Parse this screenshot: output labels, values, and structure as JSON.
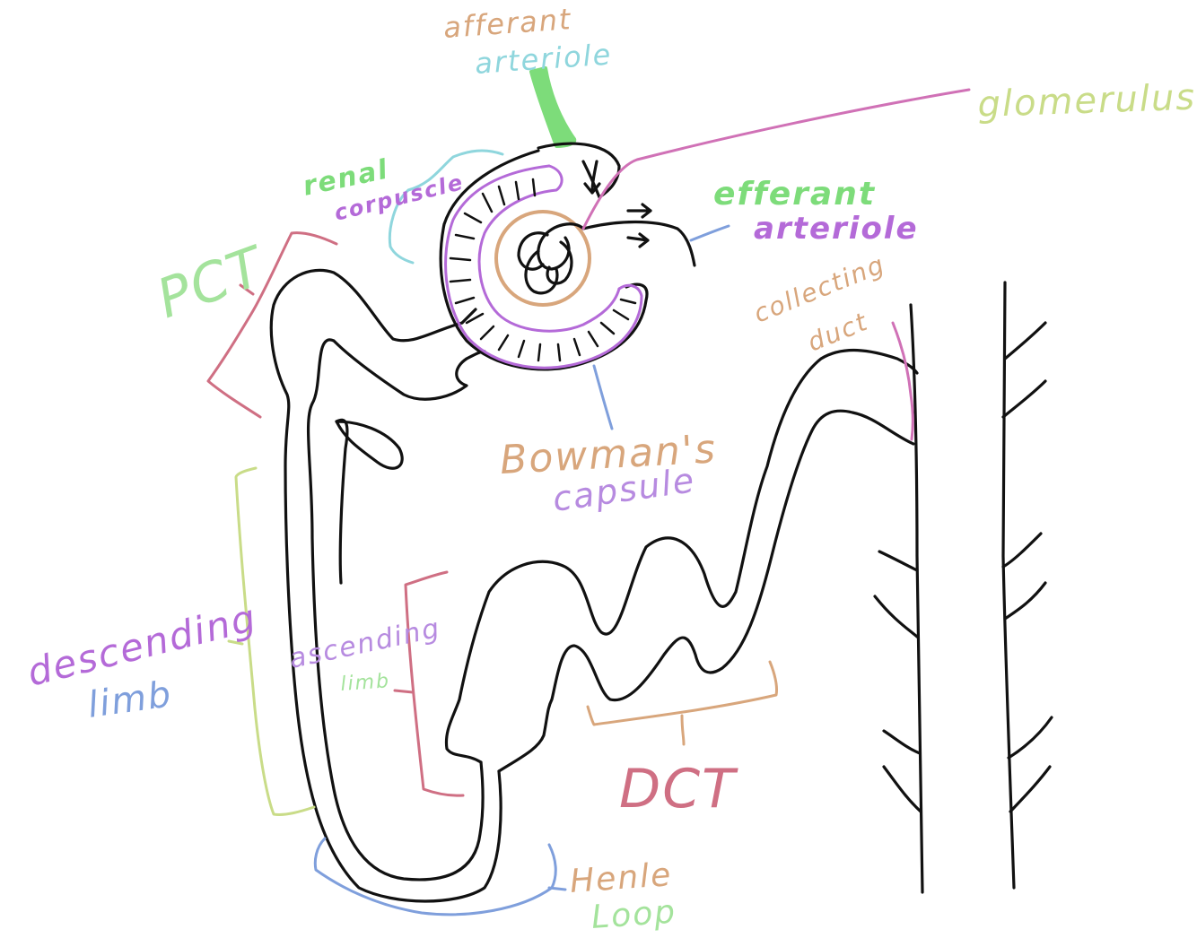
{
  "labels": {
    "afferant_1": "afferant",
    "afferant_2": "arteriole",
    "glomerulus": "glomerulus",
    "renal_1": "renal",
    "renal_2": "corpuscle",
    "efferant_1": "efferant",
    "efferant_2": "arteriole",
    "pct": "PCT",
    "collecting_1": "collecting",
    "collecting_2": "duct",
    "bowmans_1": "Bowman's",
    "bowmans_2": "capsule",
    "descending_1": "descending",
    "descending_2": "limb",
    "ascending_1": "ascending",
    "ascending_2": "limb",
    "dct": "DCT",
    "henle_1": "Henle",
    "henle_2": "Loop"
  },
  "colors": {
    "ink": "#111111",
    "green": "#7ddc7a",
    "pink": "#d071b6",
    "purple": "#b46ad8",
    "cyan": "#8fd6dd",
    "blue": "#7f9fdc",
    "tan": "#d8a67c",
    "rose": "#cf6f83",
    "olive": "#c9dc88",
    "lilac": "#b78be0"
  }
}
